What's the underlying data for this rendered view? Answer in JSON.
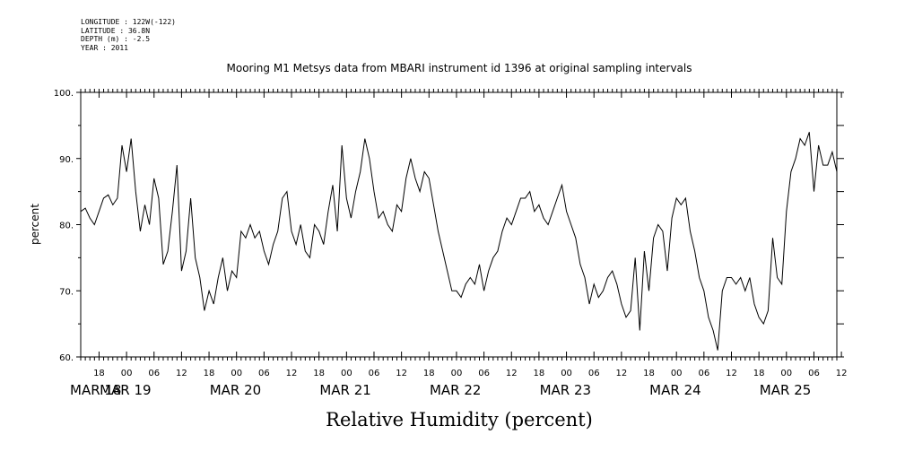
{
  "metadata": {
    "longitude": "LONGITUDE : 122W(-122)",
    "latitude": "LATITUDE : 36.8N",
    "depth": "DEPTH (m) : -2.5",
    "year": "YEAR : 2011"
  },
  "chart_data": {
    "type": "line",
    "title": "Mooring M1 Metsys data from MBARI instrument id 1396 at original sampling intervals",
    "xlabel": "Relative Humidity (percent)",
    "ylabel": "percent",
    "ylim": [
      60,
      100
    ],
    "yticks": [
      "60.",
      "70.",
      "80.",
      "90.",
      "100."
    ],
    "x_hour_ticks": [
      "18",
      "00",
      "06",
      "12",
      "18",
      "00",
      "06",
      "12",
      "18",
      "00",
      "06",
      "12",
      "18",
      "00",
      "06",
      "12",
      "18",
      "00",
      "06",
      "12",
      "18",
      "00",
      "06",
      "12",
      "18",
      "00",
      "06",
      "12"
    ],
    "x_date_labels": [
      "MAR 18",
      "MAR 19",
      "MAR 20",
      "MAR 21",
      "MAR 22",
      "MAR 23",
      "MAR 24",
      "MAR 25"
    ],
    "x_unit": "hours since MAR 18 00:00",
    "xlim": [
      14,
      179
    ],
    "x": [
      14,
      15,
      16,
      17,
      18,
      19,
      20,
      21,
      22,
      23,
      24,
      25,
      26,
      27,
      28,
      29,
      30,
      31,
      32,
      33,
      34,
      35,
      36,
      37,
      38,
      39,
      40,
      41,
      42,
      43,
      44,
      45,
      46,
      47,
      48,
      49,
      50,
      51,
      52,
      53,
      54,
      55,
      56,
      57,
      58,
      59,
      60,
      61,
      62,
      63,
      64,
      65,
      66,
      67,
      68,
      69,
      70,
      71,
      72,
      73,
      74,
      75,
      76,
      77,
      78,
      79,
      80,
      81,
      82,
      83,
      84,
      85,
      86,
      87,
      88,
      89,
      90,
      91,
      92,
      93,
      94,
      95,
      96,
      97,
      98,
      99,
      100,
      101,
      102,
      103,
      104,
      105,
      106,
      107,
      108,
      109,
      110,
      111,
      112,
      113,
      114,
      115,
      116,
      117,
      118,
      119,
      120,
      121,
      122,
      123,
      124,
      125,
      126,
      127,
      128,
      129,
      130,
      131,
      132,
      133,
      134,
      135,
      136,
      137,
      138,
      139,
      140,
      141,
      142,
      143,
      144,
      145,
      146,
      147,
      148,
      149,
      150,
      151,
      152,
      153,
      154,
      155,
      156,
      157,
      158,
      159,
      160,
      161,
      162,
      163,
      164,
      165,
      166,
      167,
      168,
      169,
      170,
      171,
      172,
      173,
      174,
      175,
      176,
      177,
      178,
      179
    ],
    "series": [
      {
        "values": [
          82,
          82.5,
          81,
          80,
          82,
          84,
          84.5,
          83,
          84,
          92,
          88,
          93,
          85,
          79,
          83,
          80,
          87,
          84,
          74,
          76,
          82,
          89,
          73,
          76,
          84,
          75,
          72,
          67,
          70,
          68,
          72,
          75,
          70,
          73,
          72,
          79,
          78,
          80,
          78,
          79,
          76,
          74,
          77,
          79,
          84,
          85,
          79,
          77,
          80,
          76,
          75,
          80,
          79,
          77,
          82,
          86,
          79,
          92,
          84,
          81,
          85,
          88,
          93,
          90,
          85,
          81,
          82,
          80,
          79,
          83,
          82,
          87,
          90,
          87,
          85,
          88,
          87,
          83,
          79,
          76,
          73,
          70,
          70,
          69,
          71,
          72,
          71,
          74,
          70,
          73,
          75,
          76,
          79,
          81,
          80,
          82,
          84,
          84,
          85,
          82,
          83,
          81,
          80,
          82,
          84,
          86,
          82,
          80,
          78,
          74,
          72,
          68,
          71,
          69,
          70,
          72,
          73,
          71,
          68,
          66,
          67,
          75,
          64,
          76,
          70,
          78,
          80,
          79,
          73,
          81,
          84,
          83,
          84,
          79,
          76,
          72,
          70,
          66,
          64,
          61,
          70,
          72,
          72,
          71,
          72,
          70,
          72,
          68,
          66,
          65,
          67,
          78,
          72,
          71,
          82,
          88,
          90,
          93,
          92,
          94,
          85,
          92,
          89,
          89,
          91,
          88
        ]
      }
    ]
  }
}
